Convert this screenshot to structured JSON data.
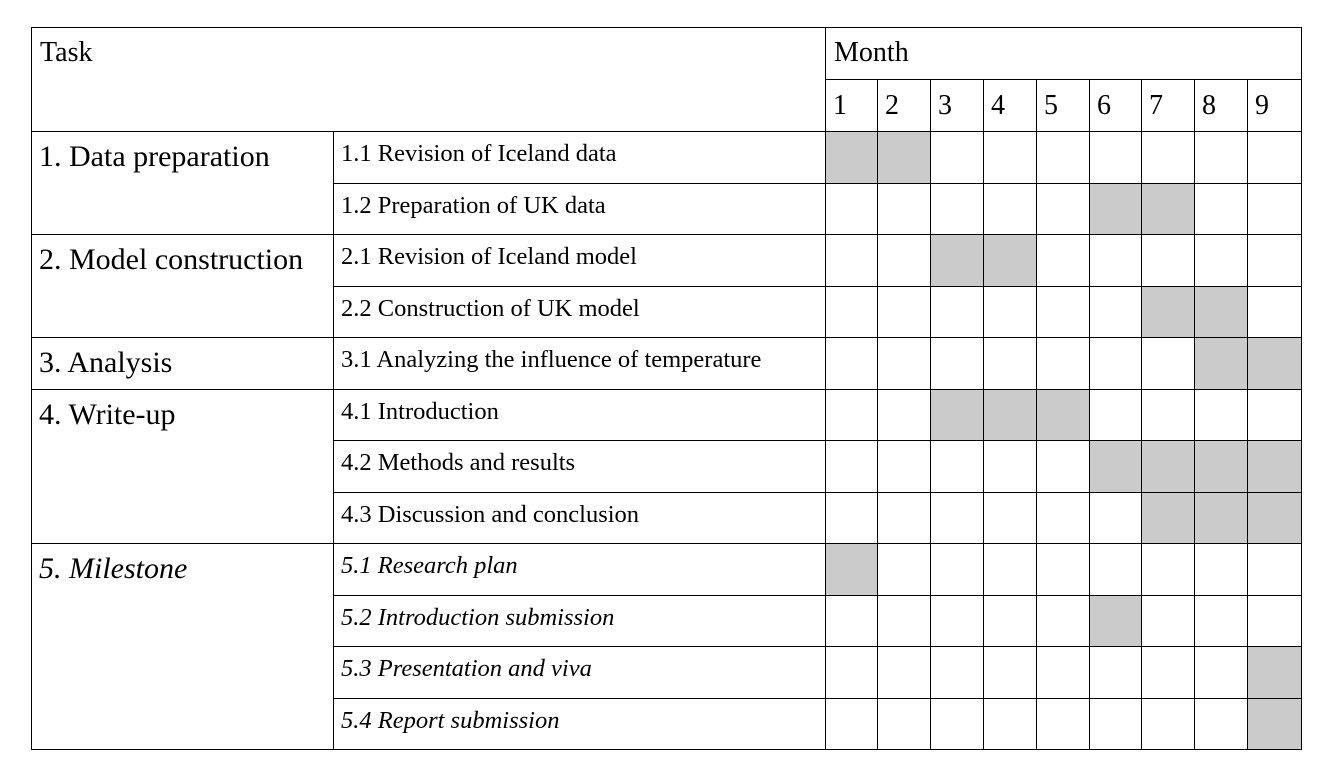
{
  "header": {
    "task_label": "Task",
    "month_label": "Month",
    "months": [
      "1",
      "2",
      "3",
      "4",
      "5",
      "6",
      "7",
      "8",
      "9"
    ]
  },
  "groups": [
    {
      "label": "1. Data preparation",
      "italic": false,
      "tasks": [
        {
          "label": "1.1 Revision of Iceland data",
          "active_months": [
            1,
            2
          ]
        },
        {
          "label": "1.2 Preparation of UK data",
          "active_months": [
            6,
            7
          ]
        }
      ]
    },
    {
      "label": "2. Model construction",
      "italic": false,
      "tasks": [
        {
          "label": "2.1 Revision of Iceland model",
          "active_months": [
            3,
            4
          ]
        },
        {
          "label": "2.2 Construction of UK model",
          "active_months": [
            7,
            8
          ]
        }
      ]
    },
    {
      "label": "3. Analysis",
      "italic": false,
      "tasks": [
        {
          "label": "3.1 Analyzing the influence of temperature",
          "active_months": [
            8,
            9
          ]
        }
      ]
    },
    {
      "label": "4. Write-up",
      "italic": false,
      "tasks": [
        {
          "label": "4.1 Introduction",
          "active_months": [
            3,
            4,
            5
          ]
        },
        {
          "label": "4.2 Methods and results",
          "active_months": [
            6,
            7,
            8,
            9
          ]
        },
        {
          "label": "4.3 Discussion and conclusion",
          "active_months": [
            7,
            8,
            9
          ]
        }
      ]
    },
    {
      "label": "5. Milestone",
      "italic": true,
      "tasks": [
        {
          "label": "5.1 Research plan",
          "active_months": [
            1
          ]
        },
        {
          "label": "5.2 Introduction submission",
          "active_months": [
            6
          ]
        },
        {
          "label": "5.3 Presentation and viva",
          "active_months": [
            9
          ]
        },
        {
          "label": "5.4 Report submission",
          "active_months": [
            9
          ]
        }
      ]
    }
  ],
  "colors": {
    "filled": "#cbcbcb",
    "empty": "#ffffff",
    "border": "#000000"
  }
}
